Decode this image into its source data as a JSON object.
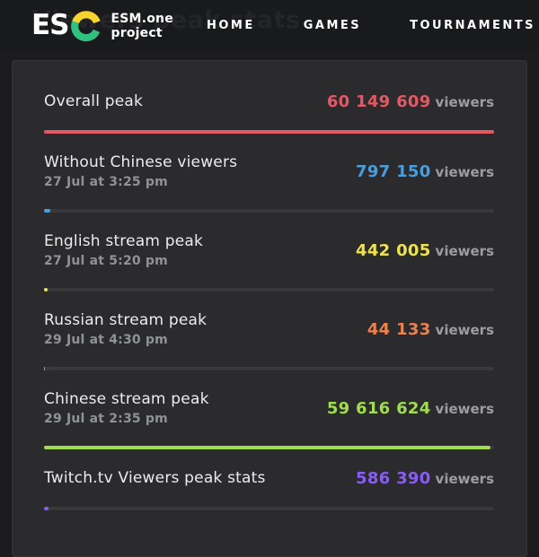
{
  "page": {
    "ghost_title": "Viewers peak stats"
  },
  "header": {
    "logo": {
      "text_white": "ES",
      "letter_c": "C",
      "c_yellow": "#f6d32d",
      "c_green": "#2ec27e"
    },
    "project_label": "ESM.one project",
    "nav": [
      {
        "label": "HOME"
      },
      {
        "label": "GAMES"
      },
      {
        "label": "TOURNAMENTS"
      }
    ]
  },
  "stats": {
    "unit_label": "viewers",
    "max_value": 60149609,
    "rows": [
      {
        "title": "Overall peak",
        "subtitle": "",
        "value": "60 149 609",
        "value_num": 60149609,
        "color": "#e25965"
      },
      {
        "title": "Without Chinese viewers",
        "subtitle": "27 Jul at 3:25 pm",
        "value": "797 150",
        "value_num": 797150,
        "color": "#4a9ede"
      },
      {
        "title": "English stream peak",
        "subtitle": "27 Jul at 5:20 pm",
        "value": "442 005",
        "value_num": 442005,
        "color": "#efe34d"
      },
      {
        "title": "Russian stream peak",
        "subtitle": "29 Jul at 4:30 pm",
        "value": "44 133",
        "value_num": 44133,
        "color": "#ea8150"
      },
      {
        "title": "Chinese stream peak",
        "subtitle": "29 Jul at 2:35 pm",
        "value": "59 616 624",
        "value_num": 59616624,
        "color": "#a0dc50"
      },
      {
        "title": "Twitch.tv Viewers peak stats",
        "subtitle": "",
        "value": "586 390",
        "value_num": 586390,
        "color": "#8a5cf6"
      }
    ]
  }
}
